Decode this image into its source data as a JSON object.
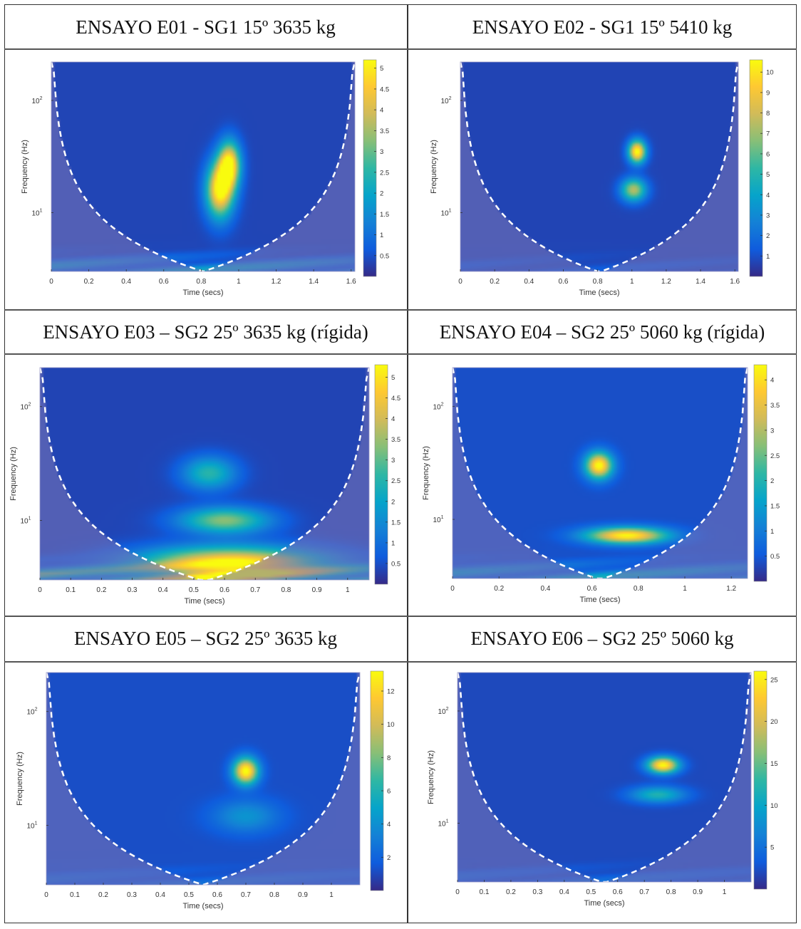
{
  "colors": {
    "parula": [
      "#352a87",
      "#0f5cdd",
      "#1481d6",
      "#06a4ca",
      "#2eb7a4",
      "#87bf77",
      "#d1bb59",
      "#fec832",
      "#f9fb0e"
    ],
    "coi_fill": "#7a74b6",
    "border": "#333333"
  },
  "chart_data": [
    {
      "type": "heatmap",
      "id": "E01",
      "title": "ENSAYO E01 - SG1 15º 3635 kg",
      "xlabel": "Time (secs)",
      "ylabel": "Frequency (Hz)",
      "xlim": [
        0,
        1.62
      ],
      "ylim": [
        3,
        220
      ],
      "yscale": "log",
      "xticks": [
        0,
        0.2,
        0.4,
        0.6,
        0.8,
        1,
        1.2,
        1.4,
        1.6
      ],
      "xtick_labels": [
        "0",
        "0.2",
        "0.4",
        "0.6",
        "0.8",
        "1",
        "1.2",
        "1.4",
        "1.6"
      ],
      "ytick_labels": [
        {
          "base": "10",
          "exp": "1",
          "value": 10
        },
        {
          "base": "10",
          "exp": "2",
          "value": 100
        }
      ],
      "colorbar": {
        "min": 0,
        "max": 5.2,
        "ticks": [
          0.5,
          1,
          1.5,
          2,
          2.5,
          3,
          3.5,
          4,
          4.5,
          5
        ],
        "tick_labels": [
          "0.5",
          "1",
          "1.5",
          "2",
          "2.5",
          "3",
          "3.5",
          "4",
          "4.5",
          "5"
        ]
      },
      "coi_center": 0.81,
      "background_level": 0.35,
      "low_band_level": 1.8,
      "blobs": [
        {
          "t": 0.9,
          "f": 16,
          "peak": 5.0,
          "st": 0.05,
          "sf": 0.17
        },
        {
          "t": 0.95,
          "f": 27,
          "peak": 4.6,
          "st": 0.04,
          "sf": 0.14
        }
      ]
    },
    {
      "type": "heatmap",
      "id": "E02",
      "title": "ENSAYO E02 - SG1 15º 5410 kg",
      "xlabel": "Time (secs)",
      "ylabel": "Frequency (Hz)",
      "xlim": [
        0,
        1.62
      ],
      "ylim": [
        3,
        220
      ],
      "yscale": "log",
      "xticks": [
        0,
        0.2,
        0.4,
        0.6,
        0.8,
        1,
        1.2,
        1.4,
        1.6
      ],
      "xtick_labels": [
        "0",
        "0.2",
        "0.4",
        "0.6",
        "0.8",
        "1",
        "1.2",
        "1.4",
        "1.6"
      ],
      "ytick_labels": [
        {
          "base": "10",
          "exp": "1",
          "value": 10
        },
        {
          "base": "10",
          "exp": "2",
          "value": 100
        }
      ],
      "colorbar": {
        "min": 0,
        "max": 10.6,
        "ticks": [
          1,
          2,
          3,
          4,
          5,
          6,
          7,
          8,
          9,
          10
        ],
        "tick_labels": [
          "1",
          "2",
          "3",
          "4",
          "5",
          "6",
          "7",
          "8",
          "9",
          "10"
        ]
      },
      "coi_center": 0.82,
      "background_level": 0.7,
      "low_band_level": 0.8,
      "blobs": [
        {
          "t": 1.03,
          "f": 35,
          "peak": 10.2,
          "st": 0.035,
          "sf": 0.07
        },
        {
          "t": 1.01,
          "f": 16,
          "peak": 6.8,
          "st": 0.05,
          "sf": 0.07
        }
      ]
    },
    {
      "type": "heatmap",
      "id": "E03",
      "title": "ENSAYO E03 – SG2 25º 3635 kg (rígida)",
      "xlabel": "Time (secs)",
      "ylabel": "Frequency (Hz)",
      "xlim": [
        0,
        1.07
      ],
      "ylim": [
        3,
        220
      ],
      "yscale": "log",
      "xticks": [
        0,
        0.1,
        0.2,
        0.3,
        0.4,
        0.5,
        0.6,
        0.7,
        0.8,
        0.9,
        1
      ],
      "xtick_labels": [
        "0",
        "0.1",
        "0.2",
        "0.3",
        "0.4",
        "0.5",
        "0.6",
        "0.7",
        "0.8",
        "0.9",
        "1"
      ],
      "ytick_labels": [
        {
          "base": "10",
          "exp": "1",
          "value": 10
        },
        {
          "base": "10",
          "exp": "2",
          "value": 100
        }
      ],
      "colorbar": {
        "min": 0,
        "max": 5.3,
        "ticks": [
          0.5,
          1,
          1.5,
          2,
          2.5,
          3,
          3.5,
          4,
          4.5,
          5
        ],
        "tick_labels": [
          "0.5",
          "1",
          "1.5",
          "2",
          "2.5",
          "3",
          "3.5",
          "4",
          "4.5",
          "5"
        ]
      },
      "coi_center": 0.55,
      "background_level": 0.35,
      "low_band_level": 3.5,
      "blobs": [
        {
          "t": 0.62,
          "f": 4.2,
          "peak": 4.8,
          "st": 0.2,
          "sf": 0.1
        },
        {
          "t": 0.6,
          "f": 10,
          "peak": 3.0,
          "st": 0.1,
          "sf": 0.08
        },
        {
          "t": 0.55,
          "f": 26,
          "peak": 2.2,
          "st": 0.06,
          "sf": 0.1
        }
      ]
    },
    {
      "type": "heatmap",
      "id": "E04",
      "title": "ENSAYO E04 – SG2 25º 5060 kg (rígida)",
      "xlabel": "Time (secs)",
      "ylabel": "Frequency (Hz)",
      "xlim": [
        0,
        1.27
      ],
      "ylim": [
        3,
        220
      ],
      "yscale": "log",
      "xticks": [
        0,
        0.2,
        0.4,
        0.6,
        0.8,
        1,
        1.2
      ],
      "xtick_labels": [
        "0",
        "0.2",
        "0.4",
        "0.6",
        "0.8",
        "1",
        "1.2"
      ],
      "ytick_labels": [
        {
          "base": "10",
          "exp": "1",
          "value": 10
        },
        {
          "base": "10",
          "exp": "2",
          "value": 100
        }
      ],
      "colorbar": {
        "min": 0,
        "max": 4.3,
        "ticks": [
          0.5,
          1,
          1.5,
          2,
          2.5,
          3,
          3.5,
          4
        ],
        "tick_labels": [
          "0.5",
          "1",
          "1.5",
          "2",
          "2.5",
          "3",
          "3.5",
          "4"
        ]
      },
      "coi_center": 0.65,
      "background_level": 0.4,
      "low_band_level": 1.5,
      "blobs": [
        {
          "t": 0.75,
          "f": 7.2,
          "peak": 3.9,
          "st": 0.12,
          "sf": 0.05
        },
        {
          "t": 0.63,
          "f": 30,
          "peak": 4.0,
          "st": 0.04,
          "sf": 0.08
        }
      ]
    },
    {
      "type": "heatmap",
      "id": "E05",
      "title": "ENSAYO E05 – SG2 25º 3635 kg",
      "xlabel": "Time (secs)",
      "ylabel": "Frequency (Hz)",
      "xlim": [
        0,
        1.1
      ],
      "ylim": [
        3,
        220
      ],
      "yscale": "log",
      "xticks": [
        0,
        0.1,
        0.2,
        0.3,
        0.4,
        0.5,
        0.6,
        0.7,
        0.8,
        0.9,
        1
      ],
      "xtick_labels": [
        "0",
        "0.1",
        "0.2",
        "0.3",
        "0.4",
        "0.5",
        "0.6",
        "0.7",
        "0.8",
        "0.9",
        "1"
      ],
      "ytick_labels": [
        {
          "base": "10",
          "exp": "1",
          "value": 10
        },
        {
          "base": "10",
          "exp": "2",
          "value": 100
        }
      ],
      "colorbar": {
        "min": 0,
        "max": 13.2,
        "ticks": [
          2,
          4,
          6,
          8,
          10,
          12
        ],
        "tick_labels": [
          "2",
          "4",
          "6",
          "8",
          "10",
          "12"
        ]
      },
      "coi_center": 0.55,
      "background_level": 1.2,
      "low_band_level": 1.5,
      "blobs": [
        {
          "t": 0.7,
          "f": 30,
          "peak": 12.5,
          "st": 0.03,
          "sf": 0.08
        },
        {
          "t": 0.7,
          "f": 12,
          "peak": 3.0,
          "st": 0.08,
          "sf": 0.1
        }
      ]
    },
    {
      "type": "heatmap",
      "id": "E06",
      "title": "ENSAYO E06 – SG2 25º 5060 kg",
      "xlabel": "Time (secs)",
      "ylabel": "Frequency (Hz)",
      "xlim": [
        0,
        1.1
      ],
      "ylim": [
        3,
        220
      ],
      "yscale": "log",
      "xticks": [
        0,
        0.1,
        0.2,
        0.3,
        0.4,
        0.5,
        0.6,
        0.7,
        0.8,
        0.9,
        1
      ],
      "xtick_labels": [
        "0",
        "0.1",
        "0.2",
        "0.3",
        "0.4",
        "0.5",
        "0.6",
        "0.7",
        "0.8",
        "0.9",
        "1"
      ],
      "ytick_labels": [
        {
          "base": "10",
          "exp": "1",
          "value": 10
        },
        {
          "base": "10",
          "exp": "2",
          "value": 100
        }
      ],
      "colorbar": {
        "min": 0,
        "max": 26,
        "ticks": [
          5,
          10,
          15,
          20,
          25
        ],
        "tick_labels": [
          "5",
          "10",
          "15",
          "20",
          "25"
        ]
      },
      "coi_center": 0.56,
      "background_level": 2.0,
      "low_band_level": 3.0,
      "blobs": [
        {
          "t": 0.77,
          "f": 33,
          "peak": 24.5,
          "st": 0.04,
          "sf": 0.05
        },
        {
          "t": 0.75,
          "f": 18,
          "peak": 10,
          "st": 0.07,
          "sf": 0.05
        }
      ]
    }
  ]
}
